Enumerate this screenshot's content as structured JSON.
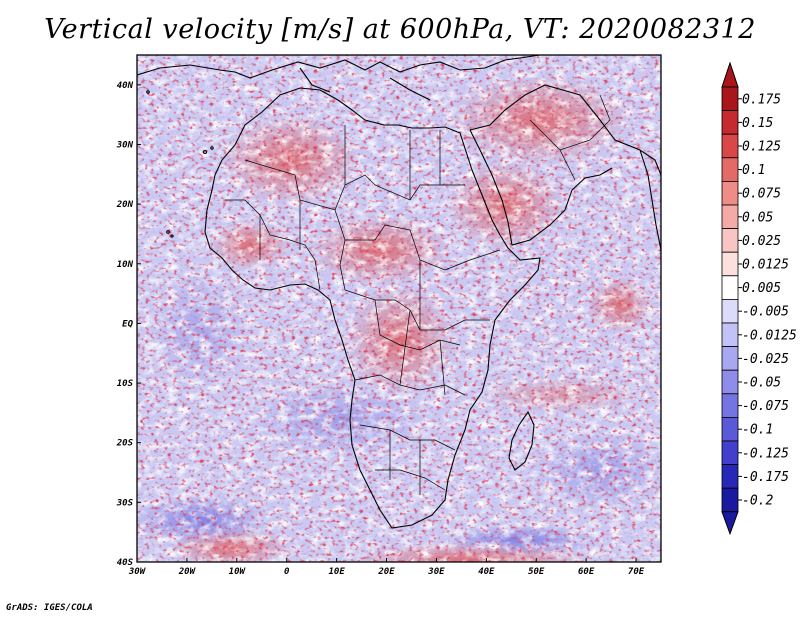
{
  "title": "Vertical velocity [m/s] at 600hPa, VT: 2020082312",
  "footer": "GrADS: IGES/COLA",
  "map": {
    "lon_range": [
      -30,
      75
    ],
    "lat_range": [
      -40,
      45
    ],
    "x_ticks": [
      {
        "lon": -30,
        "label": "30W"
      },
      {
        "lon": -20,
        "label": "20W"
      },
      {
        "lon": -10,
        "label": "10W"
      },
      {
        "lon": 0,
        "label": "0"
      },
      {
        "lon": 10,
        "label": "10E"
      },
      {
        "lon": 20,
        "label": "20E"
      },
      {
        "lon": 30,
        "label": "30E"
      },
      {
        "lon": 40,
        "label": "40E"
      },
      {
        "lon": 50,
        "label": "50E"
      },
      {
        "lon": 60,
        "label": "60E"
      },
      {
        "lon": 70,
        "label": "70E"
      }
    ],
    "y_ticks": [
      {
        "lat": 40,
        "label": "40N"
      },
      {
        "lat": 30,
        "label": "30N"
      },
      {
        "lat": 20,
        "label": "20N"
      },
      {
        "lat": 10,
        "label": "10N"
      },
      {
        "lat": 0,
        "label": "EQ"
      },
      {
        "lat": -10,
        "label": "10S"
      },
      {
        "lat": -20,
        "label": "20S"
      },
      {
        "lat": -30,
        "label": "30S"
      },
      {
        "lat": -40,
        "label": "40S"
      }
    ]
  },
  "colorbar": {
    "levels": [
      "0.175",
      "0.15",
      "0.125",
      "0.1",
      "0.075",
      "0.05",
      "0.025",
      "0.0125",
      "0.005",
      "-0.005",
      "-0.0125",
      "-0.025",
      "-0.05",
      "-0.075",
      "-0.1",
      "-0.125",
      "-0.175",
      "-0.2"
    ],
    "colors": [
      "#a8151b",
      "#c42a2e",
      "#d84848",
      "#e46a68",
      "#ee8c88",
      "#f4aaa6",
      "#f8c6c2",
      "#fce0dd",
      "#ffffff",
      "#dcdcfa",
      "#c2c2f6",
      "#a8a8f0",
      "#8e8eea",
      "#7474e2",
      "#5a5ad8",
      "#4040cc",
      "#2828b8",
      "#1a1aa0"
    ],
    "top_color": "#a8151b",
    "bottom_color": "#1a1aa0"
  }
}
